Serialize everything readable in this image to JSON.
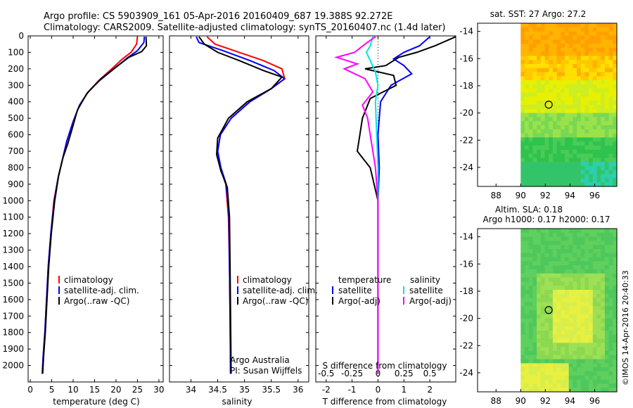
{
  "header": {
    "line1": "Argo profile: CS 5903909_161 05-Apr-2016 20160409_687 19.388S 92.272E",
    "line2": "Climatology: CARS2009. Satellite-adjusted climatology: synTS_20160407.nc (1.4d later)"
  },
  "colors": {
    "climatology": "#ff0000",
    "satellite": "#0000ff",
    "argo": "#000000",
    "salinity_satellite": "#00e5e5",
    "salinity_argo": "#ff00ff"
  },
  "chart_data": [
    {
      "type": "line",
      "name": "temperature-profile",
      "xlabel": "temperature (deg C)",
      "ylabel": "",
      "xlim": [
        -0.5,
        31
      ],
      "ylim": [
        2100,
        0
      ],
      "xticks": [
        "0",
        "5",
        "10",
        "15",
        "20",
        "25",
        "30"
      ],
      "yticks": [
        "0",
        "100",
        "200",
        "300",
        "400",
        "500",
        "600",
        "700",
        "800",
        "900",
        "1000",
        "1100",
        "1200",
        "1300",
        "1400",
        "1500",
        "1600",
        "1700",
        "1800",
        "1900",
        "2000"
      ],
      "legend": [
        "climatology",
        "satellite-adj. clim.",
        "Argo(..raw -QC)"
      ],
      "series": [
        {
          "name": "climatology",
          "color": "#ff0000",
          "points": [
            [
              25.0,
              5
            ],
            [
              24.8,
              50
            ],
            [
              23.5,
              100
            ],
            [
              21.5,
              140
            ],
            [
              19.0,
              200
            ],
            [
              16.0,
              270
            ],
            [
              13.5,
              340
            ],
            [
              11.5,
              420
            ],
            [
              10.0,
              520
            ],
            [
              8.5,
              640
            ],
            [
              7.5,
              750
            ],
            [
              6.5,
              860
            ],
            [
              5.5,
              1000
            ],
            [
              4.8,
              1200
            ],
            [
              4.2,
              1400
            ],
            [
              3.8,
              1600
            ],
            [
              3.4,
              1800
            ],
            [
              3.0,
              1950
            ],
            [
              2.8,
              2050
            ]
          ]
        },
        {
          "name": "satellite-adj. clim.",
          "color": "#0000ff",
          "points": [
            [
              26.6,
              5
            ],
            [
              26.5,
              40
            ],
            [
              25.0,
              90
            ],
            [
              22.8,
              130
            ],
            [
              19.5,
              200
            ],
            [
              16.2,
              270
            ],
            [
              13.5,
              340
            ],
            [
              11.5,
              420
            ],
            [
              10.0,
              520
            ],
            [
              8.5,
              640
            ],
            [
              7.5,
              750
            ],
            [
              6.5,
              860
            ],
            [
              5.6,
              1000
            ],
            [
              4.8,
              1200
            ],
            [
              4.2,
              1400
            ],
            [
              3.8,
              1600
            ],
            [
              3.4,
              1800
            ],
            [
              3.0,
              1950
            ],
            [
              2.8,
              2050
            ]
          ]
        },
        {
          "name": "Argo(..raw -QC)",
          "color": "#000000",
          "points": [
            [
              27.0,
              5
            ],
            [
              27.1,
              60
            ],
            [
              26.0,
              95
            ],
            [
              23.0,
              130
            ],
            [
              20.0,
              190
            ],
            [
              16.5,
              260
            ],
            [
              13.2,
              350
            ],
            [
              11.0,
              450
            ],
            [
              9.8,
              560
            ],
            [
              8.8,
              650
            ],
            [
              7.6,
              740
            ],
            [
              6.6,
              850
            ],
            [
              5.7,
              1000
            ],
            [
              4.9,
              1200
            ],
            [
              4.3,
              1400
            ],
            [
              3.9,
              1600
            ],
            [
              3.5,
              1800
            ],
            [
              3.1,
              1950
            ],
            [
              2.9,
              2050
            ]
          ]
        }
      ]
    },
    {
      "type": "line",
      "name": "salinity-profile",
      "xlabel": "salinity",
      "xlim": [
        33.6,
        36.2
      ],
      "ylim": [
        2100,
        0
      ],
      "xticks": [
        "34",
        "34.5",
        "35",
        "35.5",
        "36"
      ],
      "legend": [
        "climatology",
        "satellite-adj. clim.",
        "Argo(..raw -QC)"
      ],
      "annotation": [
        "Argo Australia",
        "PI: Susan Wijffels"
      ],
      "series": [
        {
          "name": "climatology",
          "color": "#ff0000",
          "points": [
            [
              34.3,
              5
            ],
            [
              34.45,
              50
            ],
            [
              34.9,
              100
            ],
            [
              35.35,
              150
            ],
            [
              35.7,
              200
            ],
            [
              35.75,
              260
            ],
            [
              35.5,
              320
            ],
            [
              35.1,
              400
            ],
            [
              34.75,
              500
            ],
            [
              34.55,
              600
            ],
            [
              34.5,
              700
            ],
            [
              34.55,
              800
            ],
            [
              34.65,
              900
            ],
            [
              34.7,
              1100
            ],
            [
              34.72,
              1400
            ],
            [
              34.73,
              1700
            ],
            [
              34.74,
              2050
            ]
          ]
        },
        {
          "name": "satellite-adj. clim.",
          "color": "#0000ff",
          "points": [
            [
              34.1,
              5
            ],
            [
              34.15,
              40
            ],
            [
              34.6,
              90
            ],
            [
              35.1,
              150
            ],
            [
              35.55,
              210
            ],
            [
              35.75,
              260
            ],
            [
              35.5,
              320
            ],
            [
              35.1,
              400
            ],
            [
              34.75,
              500
            ],
            [
              34.55,
              600
            ],
            [
              34.5,
              700
            ],
            [
              34.56,
              800
            ],
            [
              34.66,
              900
            ],
            [
              34.71,
              1100
            ],
            [
              34.72,
              1400
            ],
            [
              34.73,
              1700
            ],
            [
              34.74,
              2050
            ]
          ]
        },
        {
          "name": "Argo(..raw -QC)",
          "color": "#000000",
          "points": [
            [
              34.15,
              5
            ],
            [
              34.25,
              50
            ],
            [
              34.5,
              100
            ],
            [
              34.9,
              150
            ],
            [
              35.35,
              210
            ],
            [
              35.7,
              250
            ],
            [
              35.5,
              320
            ],
            [
              35.05,
              400
            ],
            [
              34.7,
              500
            ],
            [
              34.5,
              620
            ],
            [
              34.48,
              720
            ],
            [
              34.56,
              820
            ],
            [
              34.68,
              920
            ],
            [
              34.72,
              1100
            ],
            [
              34.73,
              1400
            ],
            [
              34.74,
              1700
            ],
            [
              34.75,
              2050
            ]
          ]
        }
      ]
    },
    {
      "type": "line",
      "name": "difference-profile",
      "xlabel": "T difference from climatology",
      "xlabel_top": "S difference from climatology",
      "xlim": [
        -2.4,
        3.0
      ],
      "ylim": [
        2100,
        0
      ],
      "xticks": [
        "-2",
        "-1",
        "0",
        "1",
        "2"
      ],
      "xticks_s": [
        "-0.5",
        "-0.25",
        "0",
        "0.25",
        "0.5"
      ],
      "legend_t": {
        "title": "temperature",
        "items": [
          "satellite",
          "Argo(-adj)"
        ]
      },
      "legend_s": {
        "title": "salinity",
        "items": [
          "satellite",
          "Argo(-adj)"
        ]
      },
      "series": [
        {
          "name": "T satellite",
          "color": "#0000ff",
          "points": [
            [
              2.0,
              5
            ],
            [
              1.6,
              60
            ],
            [
              1.0,
              100
            ],
            [
              0.6,
              140
            ],
            [
              1.0,
              180
            ],
            [
              1.3,
              230
            ],
            [
              0.5,
              300
            ],
            [
              0.1,
              400
            ],
            [
              0.0,
              600
            ],
            [
              0.05,
              800
            ],
            [
              0.0,
              1000
            ],
            [
              0.0,
              1500
            ],
            [
              0.0,
              2050
            ]
          ]
        },
        {
          "name": "T Argo(-adj)",
          "color": "#000000",
          "points": [
            [
              3.0,
              5
            ],
            [
              2.2,
              60
            ],
            [
              1.5,
              100
            ],
            [
              0.8,
              130
            ],
            [
              0.3,
              180
            ],
            [
              -0.5,
              200
            ],
            [
              0.6,
              240
            ],
            [
              0.7,
              300
            ],
            [
              -0.3,
              380
            ],
            [
              -0.6,
              500
            ],
            [
              -0.8,
              700
            ],
            [
              -0.3,
              800
            ],
            [
              0.0,
              1000
            ],
            [
              0.0,
              1500
            ],
            [
              0.0,
              2050
            ]
          ]
        },
        {
          "name": "S satellite",
          "color": "#00e5e5",
          "points": [
            [
              -0.2,
              5
            ],
            [
              -0.3,
              60
            ],
            [
              -0.45,
              100
            ],
            [
              -0.3,
              150
            ],
            [
              -0.1,
              220
            ],
            [
              0.0,
              300
            ],
            [
              -0.1,
              400
            ],
            [
              -0.05,
              600
            ],
            [
              0.0,
              800
            ],
            [
              0.0,
              1000
            ],
            [
              0.0,
              1500
            ],
            [
              0.0,
              2050
            ]
          ]
        },
        {
          "name": "S Argo(-adj)",
          "color": "#ff00ff",
          "points": [
            [
              -0.1,
              5
            ],
            [
              -0.5,
              50
            ],
            [
              -0.9,
              100
            ],
            [
              -1.6,
              130
            ],
            [
              -0.8,
              170
            ],
            [
              -1.3,
              200
            ],
            [
              -0.5,
              260
            ],
            [
              -0.2,
              340
            ],
            [
              -0.6,
              420
            ],
            [
              -0.4,
              500
            ],
            [
              -0.3,
              600
            ],
            [
              -0.2,
              700
            ],
            [
              -0.1,
              800
            ],
            [
              0.0,
              1000
            ],
            [
              0.0,
              1500
            ],
            [
              0.0,
              2050
            ]
          ]
        }
      ]
    },
    {
      "type": "heatmap",
      "name": "sst-map",
      "title": "sat. SST: 27 Argo: 27.2",
      "xlim": [
        86.5,
        97.8
      ],
      "ylim": [
        -25.4,
        -13.4
      ],
      "xticks": [
        "88",
        "90",
        "92",
        "94",
        "96"
      ],
      "yticks": [
        "-14",
        "-16",
        "-18",
        "-20",
        "-22",
        "-24"
      ],
      "float_position": [
        92.272,
        -19.388
      ],
      "data_region_lon": [
        90,
        97.8
      ]
    },
    {
      "type": "heatmap",
      "name": "sla-map",
      "title_line1": "Altim. SLA: 0.18",
      "title_line2": "Argo h1000: 0.17 h2000: 0.17",
      "xlim": [
        86.5,
        97.8
      ],
      "ylim": [
        -25.4,
        -13.4
      ],
      "xticks": [
        "88",
        "90",
        "92",
        "94",
        "96"
      ],
      "yticks": [
        "-14",
        "-16",
        "-18",
        "-20",
        "-22",
        "-24"
      ],
      "float_position": [
        92.272,
        -19.388
      ],
      "data_region_lon": [
        90,
        97.8
      ]
    }
  ],
  "footer": {
    "stamp": "©IMOS 14-Apr-2016 20:40:33"
  }
}
